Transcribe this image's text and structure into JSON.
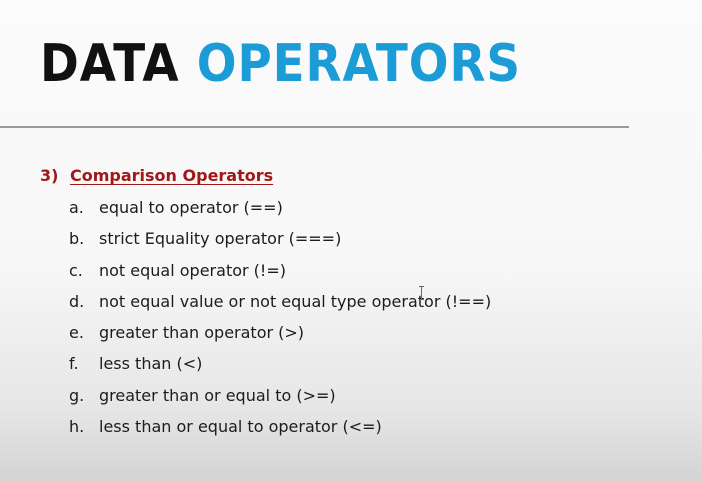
{
  "title": {
    "word_dark": "DATA",
    "word_accent": "OPERATORS",
    "dark_color": "#111111",
    "accent_color": "#1b9cd6"
  },
  "section": {
    "number": "3)",
    "heading": "Comparison Operators",
    "color": "#a01818"
  },
  "items": [
    {
      "letter": "a.",
      "text": "equal to operator (==)"
    },
    {
      "letter": "b.",
      "text": "strict Equality operator (===)"
    },
    {
      "letter": "c.",
      "text": "not equal operator (!=)"
    },
    {
      "letter": "d.",
      "text": "not equal value or not equal type operator (!==)"
    },
    {
      "letter": "e.",
      "text": "greater than operator (>)"
    },
    {
      "letter": "f.",
      "text": "less than (<)"
    },
    {
      "letter": "g.",
      "text": "greater than or equal to (>=)"
    },
    {
      "letter": "h.",
      "text": "less than or equal to operator (<=)"
    }
  ],
  "cursor_icon": "text-cursor-icon"
}
